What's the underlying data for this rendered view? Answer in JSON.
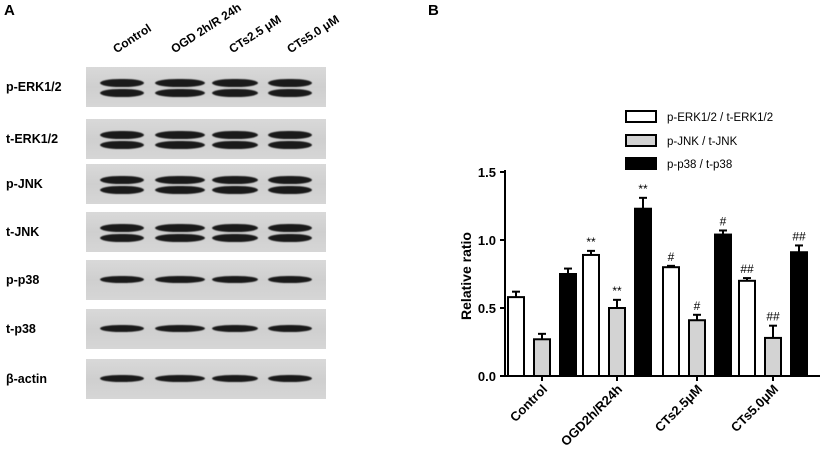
{
  "panels": {
    "a_label": "A",
    "b_label": "B"
  },
  "blot": {
    "lanes": [
      "Control",
      "OGD 2h/R 24h",
      "CTs2.5 μM",
      "CTs5.0 μM"
    ],
    "rows": [
      {
        "label": "p-ERK1/2",
        "bands": 2
      },
      {
        "label": "t-ERK1/2",
        "bands": 2
      },
      {
        "label": "p-JNK",
        "bands": 2
      },
      {
        "label": "t-JNK",
        "bands": 2
      },
      {
        "label": "p-p38",
        "bands": 1
      },
      {
        "label": "t-p38",
        "bands": 1
      },
      {
        "label": "β-actin",
        "bands": 1
      }
    ]
  },
  "chart_data": {
    "type": "bar",
    "title": "",
    "xlabel": "",
    "ylabel": "Relative ratio",
    "ylim": [
      0,
      1.5
    ],
    "yticks": [
      "0.0",
      "0.5",
      "1.0",
      "1.5"
    ],
    "categories": [
      "Control",
      "OGD2h/R24h",
      "CTs2.5μM",
      "CTs5.0μM"
    ],
    "legend_position": "top-right",
    "series": [
      {
        "name": "p-ERK1/2 / t-ERK1/2",
        "fill": "#ffffff",
        "values": [
          0.58,
          0.89,
          0.8,
          0.7
        ],
        "errors": [
          0.04,
          0.03,
          0.01,
          0.02
        ],
        "annotations": [
          "",
          "**",
          "#",
          "##"
        ]
      },
      {
        "name": "p-JNK / t-JNK",
        "fill": "#d3d3d3",
        "values": [
          0.27,
          0.5,
          0.41,
          0.28
        ],
        "errors": [
          0.04,
          0.06,
          0.04,
          0.09
        ],
        "annotations": [
          "",
          "**",
          "#",
          "##"
        ]
      },
      {
        "name": "p-p38 / t-p38",
        "fill": "#000000",
        "values": [
          0.75,
          1.23,
          1.04,
          0.91
        ],
        "errors": [
          0.04,
          0.08,
          0.03,
          0.05
        ],
        "annotations": [
          "",
          "**",
          "#",
          "##"
        ]
      }
    ]
  }
}
